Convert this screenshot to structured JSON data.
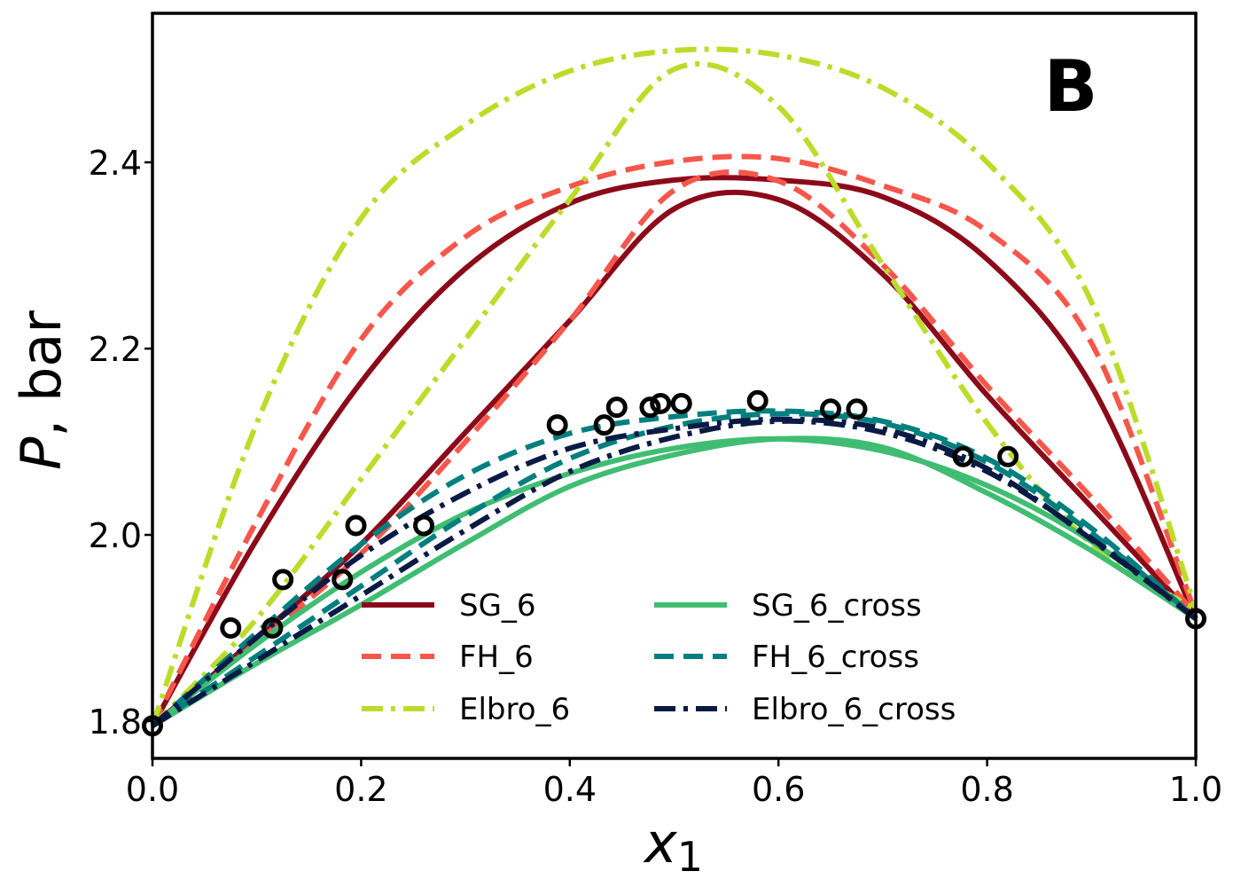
{
  "chart_data": {
    "type": "line",
    "panel_label": "B",
    "xlabel": "x",
    "xlabel_sub": "1",
    "ylabel_italic": "P",
    "ylabel_rest": ", bar",
    "xlim": [
      0.0,
      1.0
    ],
    "ylim": [
      1.76,
      2.56
    ],
    "x_ticks": [
      0.0,
      0.2,
      0.4,
      0.6,
      0.8,
      1.0
    ],
    "x_tick_labels": [
      "0.0",
      "0.2",
      "0.4",
      "0.6",
      "0.8",
      "1.0"
    ],
    "y_ticks": [
      1.8,
      2.0,
      2.2,
      2.4
    ],
    "y_tick_labels": [
      "1.8",
      "2.0",
      "2.2",
      "2.4"
    ],
    "grid": false,
    "legend_position": "lower-center",
    "x_grid": [
      0.0,
      0.1,
      0.2,
      0.3,
      0.4,
      0.5,
      0.6,
      0.7,
      0.8,
      0.9,
      1.0
    ],
    "series": [
      {
        "name": "SG_6",
        "color": "#8b0a1a",
        "dash": "solid",
        "bubble": [
          1.795,
          1.995,
          2.164,
          2.286,
          2.356,
          2.381,
          2.381,
          2.363,
          2.296,
          2.16,
          1.91
        ],
        "dew": [
          1.795,
          1.89,
          1.99,
          2.11,
          2.23,
          2.35,
          2.36,
          2.28,
          2.15,
          2.03,
          1.91
        ]
      },
      {
        "name": "FH_6",
        "color": "#f7564a",
        "dash": "dashed",
        "bubble": [
          1.795,
          2.015,
          2.21,
          2.32,
          2.374,
          2.401,
          2.404,
          2.375,
          2.326,
          2.206,
          1.915
        ],
        "dew": [
          1.795,
          1.885,
          1.98,
          2.1,
          2.23,
          2.37,
          2.38,
          2.29,
          2.16,
          2.04,
          1.915
        ]
      },
      {
        "name": "Elbro_6",
        "color": "#bcdc2a",
        "dash": "dashdot",
        "bubble": [
          1.795,
          2.12,
          2.34,
          2.44,
          2.498,
          2.52,
          2.515,
          2.48,
          2.4,
          2.25,
          1.92
        ],
        "dew": [
          1.795,
          1.91,
          2.06,
          2.21,
          2.36,
          2.5,
          2.46,
          2.29,
          2.12,
          1.99,
          1.92
        ]
      },
      {
        "name": "SG_6_cross",
        "color": "#40bd72",
        "dash": "solid",
        "bubble": [
          1.795,
          1.883,
          1.96,
          2.023,
          2.066,
          2.093,
          2.103,
          2.09,
          2.053,
          1.993,
          1.91
        ],
        "dew": [
          1.795,
          1.862,
          1.925,
          1.991,
          2.052,
          2.086,
          2.103,
          2.094,
          2.045,
          1.983,
          1.91
        ]
      },
      {
        "name": "FH_6_cross",
        "color": "#007f7f",
        "dash": "dashed",
        "bubble": [
          1.795,
          1.895,
          1.99,
          2.064,
          2.109,
          2.127,
          2.133,
          2.122,
          2.082,
          2.007,
          1.91
        ],
        "dew": [
          1.795,
          1.87,
          1.945,
          2.02,
          2.082,
          2.117,
          2.13,
          2.12,
          2.078,
          2.002,
          1.91
        ]
      },
      {
        "name": "Elbro_6_cross",
        "color": "#0b1a45",
        "dash": "dashdot",
        "bubble": [
          1.795,
          1.89,
          1.978,
          2.045,
          2.093,
          2.114,
          2.124,
          2.114,
          2.071,
          1.995,
          1.91
        ],
        "dew": [
          1.795,
          1.865,
          1.935,
          2.005,
          2.068,
          2.105,
          2.122,
          2.11,
          2.068,
          1.996,
          1.91
        ]
      }
    ],
    "experimental_points": [
      [
        0.0,
        1.795
      ],
      [
        0.075,
        1.9
      ],
      [
        0.115,
        1.9
      ],
      [
        0.125,
        1.952
      ],
      [
        0.182,
        1.952
      ],
      [
        0.195,
        2.01
      ],
      [
        0.26,
        2.01
      ],
      [
        0.388,
        2.118
      ],
      [
        0.433,
        2.118
      ],
      [
        0.445,
        2.137
      ],
      [
        0.477,
        2.137
      ],
      [
        0.487,
        2.141
      ],
      [
        0.507,
        2.141
      ],
      [
        0.58,
        2.144
      ],
      [
        0.65,
        2.135
      ],
      [
        0.675,
        2.135
      ],
      [
        0.777,
        2.084
      ],
      [
        0.82,
        2.084
      ],
      [
        1.0,
        1.91
      ]
    ]
  }
}
